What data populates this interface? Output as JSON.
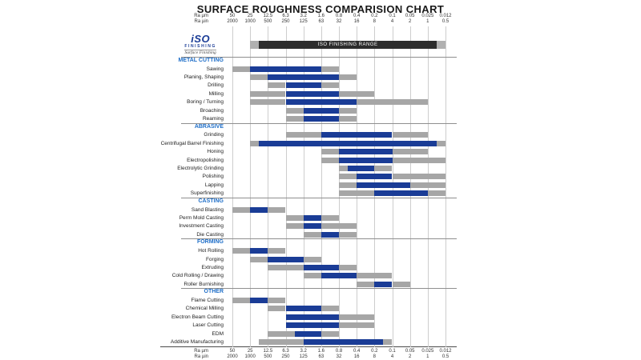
{
  "title": "SURFACE ROUGHNESS COMPARISION CHART",
  "colors": {
    "bar_blue": "#1a3c96",
    "bar_gray": "#a6a6a6",
    "iso_bar_dark": "#2d2d2d",
    "iso_bar_cap": "#b0b0b0",
    "section_header_blue": "#1e6ec8",
    "logo_blue": "#1a3c96"
  },
  "logo": {
    "main": "iSO",
    "sub": "FINISHING",
    "tagline": "Surface Finishing"
  },
  "iso_range": {
    "label": "ISO FINISHING RANGE",
    "segments": [
      [
        "cap",
        1,
        1.5
      ],
      [
        "dark",
        1.5,
        11.5
      ],
      [
        "cap",
        11.5,
        12
      ]
    ]
  },
  "chart_data": {
    "type": "bar",
    "subtype": "horizontal-range-bars",
    "x_axis": {
      "unit_um": "Ra µm",
      "unit_uin": "Ra µin",
      "ticks_um": [
        "50",
        "25",
        "12.5",
        "6.3",
        "3.2",
        "1.6",
        "0.8",
        "0.4",
        "0.2",
        "0.1",
        "0.05",
        "0.025",
        "0.012"
      ],
      "ticks_uin": [
        "2000",
        "1000",
        "500",
        "250",
        "125",
        "63",
        "32",
        "16",
        "8",
        "4",
        "2",
        "1",
        "0.5"
      ],
      "scale": "log-descending",
      "shown": "top-and-bottom"
    },
    "sections": [
      {
        "name": "METAL CUTTING",
        "rows": [
          {
            "label": "Sawing",
            "ra_um_full": [
              50,
              0.8
            ],
            "ra_um_blue": [
              25,
              1.6
            ],
            "segments": [
              [
                "gray",
                0,
                1
              ],
              [
                "blue",
                1,
                5
              ],
              [
                "gray",
                5,
                6
              ]
            ]
          },
          {
            "label": "Planing, Shaping",
            "ra_um_full": [
              25,
              0.4
            ],
            "ra_um_blue": [
              12.5,
              0.8
            ],
            "segments": [
              [
                "gray",
                1,
                2
              ],
              [
                "blue",
                2,
                6
              ],
              [
                "gray",
                6,
                7
              ]
            ]
          },
          {
            "label": "Drilling",
            "ra_um_full": [
              12.5,
              0.8
            ],
            "ra_um_blue": [
              6.3,
              1.6
            ],
            "segments": [
              [
                "gray",
                2,
                3
              ],
              [
                "blue",
                3,
                5
              ],
              [
                "gray",
                5,
                6
              ]
            ]
          },
          {
            "label": "Milling",
            "ra_um_full": [
              25,
              0.2
            ],
            "ra_um_blue": [
              6.3,
              0.8
            ],
            "segments": [
              [
                "gray",
                1,
                3
              ],
              [
                "blue",
                3,
                6
              ],
              [
                "gray",
                6,
                8
              ]
            ]
          },
          {
            "label": "Boring / Turning",
            "ra_um_full": [
              25,
              0.025
            ],
            "ra_um_blue": [
              6.3,
              0.4
            ],
            "segments": [
              [
                "gray",
                1,
                3
              ],
              [
                "blue",
                3,
                7
              ],
              [
                "gray",
                7,
                11
              ]
            ]
          },
          {
            "label": "Broaching",
            "ra_um_full": [
              6.3,
              0.4
            ],
            "ra_um_blue": [
              3.2,
              0.8
            ],
            "segments": [
              [
                "gray",
                3,
                4
              ],
              [
                "blue",
                4,
                6
              ],
              [
                "gray",
                6,
                7
              ]
            ]
          },
          {
            "label": "Reaming",
            "ra_um_full": [
              6.3,
              0.4
            ],
            "ra_um_blue": [
              3.2,
              0.8
            ],
            "segments": [
              [
                "gray",
                3,
                4
              ],
              [
                "blue",
                4,
                6
              ],
              [
                "gray",
                6,
                7
              ]
            ]
          }
        ]
      },
      {
        "name": "ABRASIVE",
        "rows": [
          {
            "label": "Grinding",
            "ra_um_full": [
              6.3,
              0.025
            ],
            "ra_um_blue": [
              1.6,
              0.1
            ],
            "segments": [
              [
                "gray",
                3,
                5
              ],
              [
                "blue",
                5,
                9
              ],
              [
                "gray",
                9,
                11
              ]
            ]
          },
          {
            "label": "Centrifugal Barrel Finishing",
            "ra_um_full": [
              25,
              0.012
            ],
            "ra_um_blue": [
              18,
              0.018
            ],
            "segments": [
              [
                "gray",
                1,
                1.5
              ],
              [
                "blue",
                1.5,
                11.5
              ],
              [
                "gray",
                11.5,
                12
              ]
            ]
          },
          {
            "label": "Honing",
            "ra_um_full": [
              1.6,
              0.025
            ],
            "ra_um_blue": [
              0.8,
              0.1
            ],
            "segments": [
              [
                "gray",
                5,
                6
              ],
              [
                "blue",
                6,
                9
              ],
              [
                "gray",
                9,
                11
              ]
            ]
          },
          {
            "label": "Electropolishing",
            "ra_um_full": [
              1.6,
              0.012
            ],
            "ra_um_blue": [
              0.8,
              0.1
            ],
            "segments": [
              [
                "gray",
                5,
                6
              ],
              [
                "blue",
                6,
                9
              ],
              [
                "gray",
                9,
                12
              ]
            ]
          },
          {
            "label": "Electrolytic Grinding",
            "ra_um_full": [
              0.8,
              0.1
            ],
            "ra_um_blue": [
              0.6,
              0.2
            ],
            "segments": [
              [
                "gray",
                6,
                6.5
              ],
              [
                "blue",
                6.5,
                8
              ],
              [
                "gray",
                8,
                9
              ]
            ]
          },
          {
            "label": "Polishing",
            "ra_um_full": [
              0.8,
              0.012
            ],
            "ra_um_blue": [
              0.4,
              0.1
            ],
            "segments": [
              [
                "gray",
                6,
                7
              ],
              [
                "blue",
                7,
                9
              ],
              [
                "gray",
                9,
                12
              ]
            ]
          },
          {
            "label": "Lapping",
            "ra_um_full": [
              0.8,
              0.012
            ],
            "ra_um_blue": [
              0.4,
              0.05
            ],
            "segments": [
              [
                "gray",
                6,
                7
              ],
              [
                "blue",
                7,
                10
              ],
              [
                "gray",
                10,
                12
              ]
            ]
          },
          {
            "label": "Superfinishing",
            "ra_um_full": [
              0.8,
              0.012
            ],
            "ra_um_blue": [
              0.2,
              0.025
            ],
            "segments": [
              [
                "gray",
                6,
                8
              ],
              [
                "blue",
                8,
                11
              ],
              [
                "gray",
                11,
                12
              ]
            ]
          }
        ]
      },
      {
        "name": "CASTING",
        "rows": [
          {
            "label": "Sand Blasting",
            "ra_um_full": [
              50,
              6.3
            ],
            "ra_um_blue": [
              25,
              12.5
            ],
            "segments": [
              [
                "gray",
                0,
                1
              ],
              [
                "blue",
                1,
                2
              ],
              [
                "gray",
                2,
                3
              ]
            ]
          },
          {
            "label": "Perm Mold Casting",
            "ra_um_full": [
              6.3,
              0.8
            ],
            "ra_um_blue": [
              3.2,
              1.6
            ],
            "segments": [
              [
                "gray",
                3,
                4
              ],
              [
                "blue",
                4,
                5
              ],
              [
                "gray",
                5,
                6
              ]
            ]
          },
          {
            "label": "Investment Casting",
            "ra_um_full": [
              6.3,
              0.4
            ],
            "ra_um_blue": [
              3.2,
              1.6
            ],
            "segments": [
              [
                "gray",
                3,
                4
              ],
              [
                "blue",
                4,
                5
              ],
              [
                "gray",
                5,
                7
              ]
            ]
          },
          {
            "label": "Die Casting",
            "ra_um_full": [
              3.2,
              0.4
            ],
            "ra_um_blue": [
              1.6,
              0.8
            ],
            "segments": [
              [
                "gray",
                4,
                5
              ],
              [
                "blue",
                5,
                6
              ],
              [
                "gray",
                6,
                7
              ]
            ]
          }
        ]
      },
      {
        "name": "FORMING",
        "rows": [
          {
            "label": "Hot Rolling",
            "ra_um_full": [
              50,
              6.3
            ],
            "ra_um_blue": [
              25,
              12.5
            ],
            "segments": [
              [
                "gray",
                0,
                1
              ],
              [
                "blue",
                1,
                2
              ],
              [
                "gray",
                2,
                3
              ]
            ]
          },
          {
            "label": "Forging",
            "ra_um_full": [
              25,
              1.6
            ],
            "ra_um_blue": [
              12.5,
              3.2
            ],
            "segments": [
              [
                "gray",
                1,
                2
              ],
              [
                "blue",
                2,
                4
              ],
              [
                "gray",
                4,
                5
              ]
            ]
          },
          {
            "label": "Extruding",
            "ra_um_full": [
              12.5,
              0.4
            ],
            "ra_um_blue": [
              3.2,
              0.8
            ],
            "segments": [
              [
                "gray",
                2,
                4
              ],
              [
                "blue",
                4,
                6
              ],
              [
                "gray",
                6,
                7
              ]
            ]
          },
          {
            "label": "Cold Rolling / Drawing",
            "ra_um_full": [
              3.2,
              0.1
            ],
            "ra_um_blue": [
              1.6,
              0.4
            ],
            "segments": [
              [
                "gray",
                4,
                5
              ],
              [
                "blue",
                5,
                7
              ],
              [
                "gray",
                7,
                9
              ]
            ]
          },
          {
            "label": "Roller Burnishing",
            "ra_um_full": [
              0.4,
              0.05
            ],
            "ra_um_blue": [
              0.2,
              0.1
            ],
            "segments": [
              [
                "gray",
                7,
                8
              ],
              [
                "blue",
                8,
                9
              ],
              [
                "gray",
                9,
                10
              ]
            ]
          }
        ]
      },
      {
        "name": "OTHER",
        "rows": [
          {
            "label": "Flame Cutting",
            "ra_um_full": [
              50,
              6.3
            ],
            "ra_um_blue": [
              25,
              12.5
            ],
            "segments": [
              [
                "gray",
                0,
                1
              ],
              [
                "blue",
                1,
                2
              ],
              [
                "gray",
                2,
                3
              ]
            ]
          },
          {
            "label": "Chemical Milling",
            "ra_um_full": [
              12.5,
              0.8
            ],
            "ra_um_blue": [
              6.3,
              1.6
            ],
            "segments": [
              [
                "gray",
                2,
                3
              ],
              [
                "blue",
                3,
                5
              ],
              [
                "gray",
                5,
                6
              ]
            ]
          },
          {
            "label": "Electron Beam Cutting",
            "ra_um_full": [
              6.3,
              0.2
            ],
            "ra_um_blue": [
              6.3,
              0.8
            ],
            "segments": [
              [
                "blue",
                3,
                6
              ],
              [
                "gray",
                6,
                8
              ]
            ]
          },
          {
            "label": "Laser Cutting",
            "ra_um_full": [
              6.3,
              0.2
            ],
            "ra_um_blue": [
              6.3,
              0.8
            ],
            "segments": [
              [
                "blue",
                3,
                6
              ],
              [
                "gray",
                6,
                8
              ]
            ]
          },
          {
            "label": "EDM",
            "ra_um_full": [
              12.5,
              0.8
            ],
            "ra_um_blue": [
              4.5,
              1.6
            ],
            "segments": [
              [
                "gray",
                2,
                3.5
              ],
              [
                "blue",
                3.5,
                5
              ],
              [
                "gray",
                5,
                6
              ]
            ]
          },
          {
            "label": "Additive Manufacturing",
            "ra_um_full": [
              18,
              0.1
            ],
            "ra_um_blue": [
              3.2,
              0.15
            ],
            "segments": [
              [
                "gray",
                1.5,
                4
              ],
              [
                "blue",
                4,
                8.5
              ],
              [
                "gray",
                8.5,
                9
              ]
            ]
          }
        ]
      }
    ]
  }
}
